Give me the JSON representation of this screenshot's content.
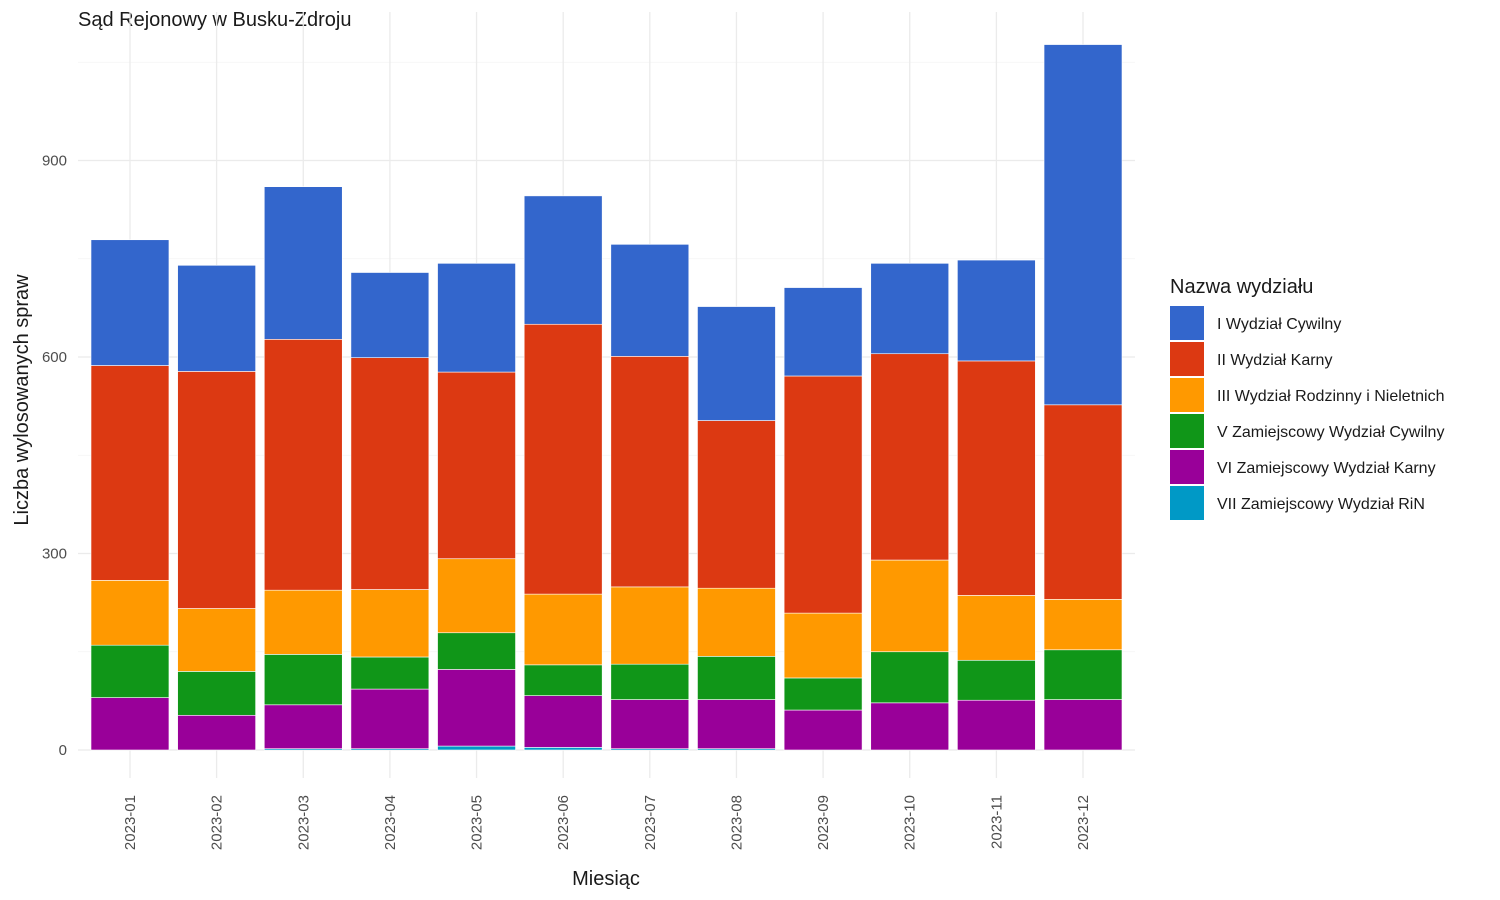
{
  "chart_data": {
    "type": "bar",
    "stacked": true,
    "title": "Sąd Rejonowy w Busku-Zdroju",
    "xlabel": "Miesiąc",
    "ylabel": "Liczba wylosowanych spraw",
    "ylim": [
      0,
      1080
    ],
    "yticks": [
      0,
      300,
      600,
      900
    ],
    "ytick_labels": [
      "0",
      "300",
      "600",
      "900"
    ],
    "grid": true,
    "legend_title": "Nazwa wydziału",
    "legend_position": "right",
    "categories": [
      "2023-01",
      "2023-02",
      "2023-03",
      "2023-04",
      "2023-05",
      "2023-06",
      "2023-07",
      "2023-08",
      "2023-09",
      "2023-10",
      "2023-11",
      "2023-12"
    ],
    "series": [
      {
        "name": "I Wydział Cywilny",
        "color": "#3366CC",
        "values": [
          192,
          162,
          233,
          130,
          166,
          196,
          171,
          174,
          135,
          138,
          154,
          550
        ]
      },
      {
        "name": "II Wydział Karny",
        "color": "#DC3912",
        "values": [
          328,
          362,
          383,
          354,
          285,
          412,
          352,
          256,
          362,
          315,
          358,
          297
        ]
      },
      {
        "name": "III Wydział Rodzinny i Nieletnich",
        "color": "#FF9900",
        "values": [
          99,
          96,
          98,
          103,
          113,
          108,
          118,
          104,
          99,
          140,
          99,
          77
        ]
      },
      {
        "name": "V Zamiejscowy Wydział Cywilny",
        "color": "#109618",
        "values": [
          80,
          67,
          77,
          49,
          56,
          47,
          54,
          66,
          49,
          78,
          61,
          76
        ]
      },
      {
        "name": "VI Zamiejscowy Wydział Karny",
        "color": "#990099",
        "values": [
          80,
          53,
          67,
          91,
          117,
          79,
          75,
          75,
          61,
          72,
          76,
          77
        ]
      },
      {
        "name": "VII Zamiejscowy Wydział RiN",
        "color": "#0099C6",
        "values": [
          0,
          0,
          2,
          2,
          6,
          4,
          2,
          2,
          0,
          0,
          0,
          0
        ]
      }
    ]
  }
}
